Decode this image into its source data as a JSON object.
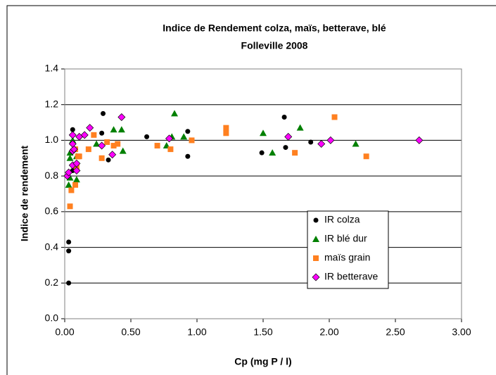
{
  "chart_data": {
    "type": "scatter",
    "title": [
      "Indice de Rendement colza, maïs, betterave, blé",
      "Folleville 2008"
    ],
    "x_label": "Cp (mg P / l)",
    "y_label": "Indice de rendement",
    "xlim": [
      0,
      3
    ],
    "ylim": [
      0,
      1.4
    ],
    "xticks": [
      {
        "value": 0,
        "label": "0.00"
      },
      {
        "value": 0.5,
        "label": "0.50"
      },
      {
        "value": 1,
        "label": "1.00"
      },
      {
        "value": 1.5,
        "label": "1.50"
      },
      {
        "value": 2,
        "label": "2.00"
      },
      {
        "value": 2.5,
        "label": "2.50"
      },
      {
        "value": 3,
        "label": "3.00"
      }
    ],
    "yticks": [
      {
        "value": 0,
        "label": "0.0"
      },
      {
        "value": 0.2,
        "label": "0.2"
      },
      {
        "value": 0.4,
        "label": "0.4"
      },
      {
        "value": 0.6,
        "label": "0.6"
      },
      {
        "value": 0.8,
        "label": "0.8"
      },
      {
        "value": 1,
        "label": "1.0"
      },
      {
        "value": 1.2,
        "label": "1.2"
      },
      {
        "value": 1.4,
        "label": "1.4"
      }
    ],
    "grid": true,
    "legend_position": "right",
    "series": [
      {
        "name": "IR colza",
        "color": "#000000",
        "marker": "circle",
        "x": [
          0.03,
          0.03,
          0.03,
          0.06,
          0.06,
          0.29,
          0.28,
          0.33,
          0.62,
          0.93,
          0.93,
          1.49,
          1.66,
          1.67,
          1.86
        ],
        "values": [
          0.2,
          0.38,
          0.43,
          0.83,
          1.06,
          1.15,
          1.04,
          0.89,
          1.02,
          1.05,
          0.91,
          0.93,
          1.13,
          0.96,
          0.99
        ]
      },
      {
        "name": "IR blé dur",
        "color": "#008000",
        "marker": "triangle",
        "x": [
          0.03,
          0.04,
          0.06,
          0.04,
          0.09,
          0.09,
          0.24,
          0.37,
          0.43,
          0.44,
          0.77,
          0.81,
          0.83,
          0.9,
          1.5,
          1.57,
          1.78,
          2.2,
          0.04
        ],
        "values": [
          0.75,
          0.93,
          1.0,
          0.9,
          0.78,
          0.91,
          0.98,
          1.06,
          1.06,
          0.94,
          0.97,
          1.02,
          1.15,
          1.02,
          1.04,
          0.93,
          1.07,
          0.98,
          0.79
        ]
      },
      {
        "name": "maïs grain",
        "color": "#ff8020",
        "marker": "square",
        "x": [
          0.04,
          0.05,
          0.08,
          0.09,
          0.1,
          0.11,
          0.18,
          0.22,
          0.28,
          0.32,
          0.37,
          0.4,
          0.7,
          0.8,
          0.96,
          1.22,
          1.22,
          1.74,
          2.04,
          2.28,
          0.08
        ],
        "values": [
          0.63,
          0.72,
          0.75,
          0.85,
          0.91,
          0.91,
          0.95,
          1.03,
          0.9,
          0.99,
          0.97,
          0.98,
          0.97,
          0.95,
          1.0,
          1.07,
          1.04,
          0.93,
          1.13,
          0.91,
          0.95
        ]
      },
      {
        "name": "IR betterave",
        "color": "#ff00ff",
        "marker": "diamond",
        "x": [
          0.02,
          0.03,
          0.06,
          0.06,
          0.06,
          0.07,
          0.09,
          0.09,
          0.11,
          0.15,
          0.19,
          0.28,
          0.36,
          0.43,
          0.79,
          1.69,
          1.94,
          2.01,
          2.68,
          0.06
        ],
        "values": [
          0.8,
          0.82,
          1.03,
          0.94,
          0.86,
          0.95,
          0.87,
          0.83,
          1.02,
          1.03,
          1.07,
          0.97,
          0.92,
          1.13,
          1.01,
          1.02,
          0.98,
          1.0,
          1.0,
          0.98
        ]
      }
    ]
  }
}
